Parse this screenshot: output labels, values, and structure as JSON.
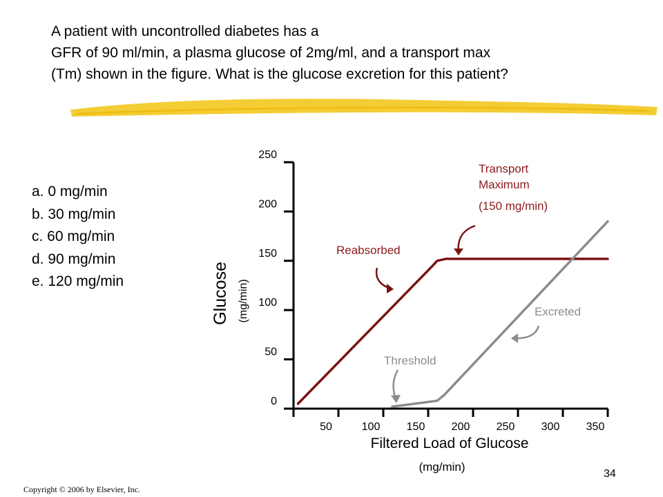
{
  "question": {
    "lines": [
      "A patient with uncontrolled diabetes has a",
      "GFR of 90 ml/min, a plasma glucose of 2mg/ml, and a transport max",
      "(Tm) shown in the figure. What is the glucose excretion for this patient?"
    ]
  },
  "answers": [
    "a. 0 mg/min",
    "b. 30 mg/min",
    "c. 60 mg/min",
    "d. 90 mg/min",
    "e. 120 mg/min"
  ],
  "colors": {
    "highlight": "#f2c81e",
    "reabsorbed": "#7a1212",
    "excreted": "#8c8c8c",
    "tm_label": "#8b1a1a",
    "axis": "#000000"
  },
  "chart_data": {
    "type": "line",
    "xlabel": "Filtered Load of Glucose",
    "xunit": "(mg/min)",
    "ylabel": "Glucose",
    "yunit": "(mg/min)",
    "xlim": [
      0,
      350
    ],
    "ylim": [
      0,
      250
    ],
    "x_ticks": [
      50,
      100,
      150,
      200,
      250,
      300,
      350
    ],
    "y_ticks": [
      0,
      50,
      100,
      150,
      200,
      250
    ],
    "series": [
      {
        "name": "Reabsorbed",
        "color": "#7a1212",
        "points": [
          [
            5,
            5
          ],
          [
            155,
            145
          ],
          [
            160,
            150
          ],
          [
            170,
            152
          ],
          [
            350,
            152
          ]
        ]
      },
      {
        "name": "Excreted",
        "color": "#8c8c8c",
        "points": [
          [
            110,
            2
          ],
          [
            160,
            8
          ],
          [
            168,
            14
          ],
          [
            350,
            190
          ]
        ]
      }
    ],
    "annotations": [
      {
        "name": "transport-maximum",
        "lines": [
          "Transport",
          "Maximum",
          "(150 mg/min)"
        ],
        "color": "#8b1a1a"
      },
      {
        "name": "reabsorbed",
        "lines": [
          "Reabsorbed"
        ],
        "color": "#8b1a1a"
      },
      {
        "name": "excreted",
        "lines": [
          "Excreted"
        ],
        "color": "#8c8c8c"
      },
      {
        "name": "threshold",
        "lines": [
          "Threshold"
        ],
        "color": "#8c8c8c"
      }
    ]
  },
  "footer": {
    "copyright": "Copyright © 2006 by Elsevier, Inc.",
    "page_number": "34"
  }
}
